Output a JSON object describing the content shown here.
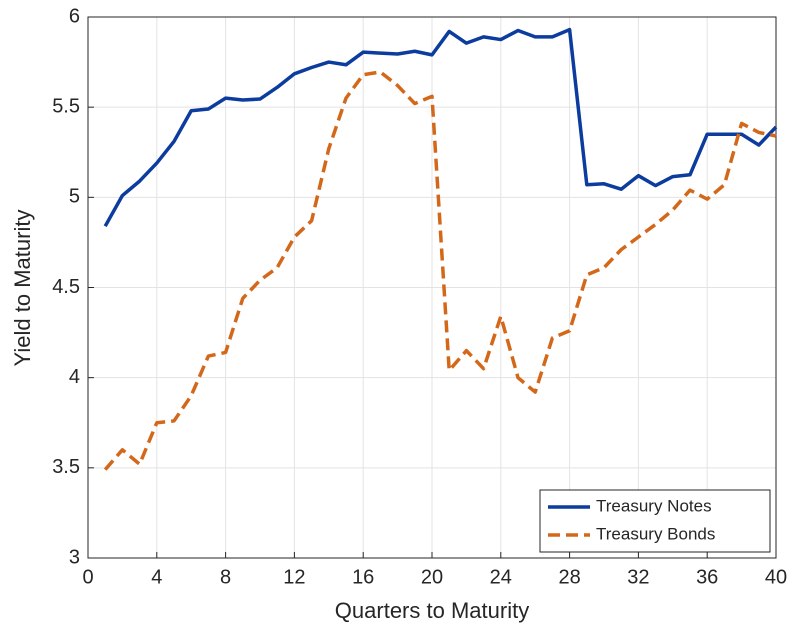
{
  "chart_data": {
    "type": "line",
    "x_label": "Quarters to Maturity",
    "y_label": "Yield to Maturity",
    "x": [
      1,
      2,
      3,
      4,
      5,
      6,
      7,
      8,
      9,
      10,
      11,
      12,
      13,
      14,
      15,
      16,
      17,
      18,
      19,
      20,
      21,
      22,
      23,
      24,
      25,
      26,
      27,
      28,
      29,
      30,
      31,
      32,
      33,
      34,
      35,
      36,
      37,
      38,
      39,
      40
    ],
    "series": [
      {
        "name": "Treasury Notes",
        "color": "#0b3c9e",
        "dash": "solid",
        "values": [
          4.84,
          5.01,
          5.09,
          5.19,
          5.31,
          5.48,
          5.49,
          5.55,
          5.54,
          5.545,
          5.61,
          5.685,
          5.72,
          5.75,
          5.735,
          5.805,
          5.8,
          5.795,
          5.81,
          5.79,
          5.92,
          5.855,
          5.89,
          5.875,
          5.925,
          5.89,
          5.89,
          5.93,
          5.07,
          5.075,
          5.045,
          5.12,
          5.065,
          5.115,
          5.125,
          5.35,
          5.35,
          5.35,
          5.29,
          5.39
        ]
      },
      {
        "name": "Treasury Bonds",
        "color": "#d4681a",
        "dash": "dashed",
        "values": [
          3.49,
          3.6,
          3.52,
          3.75,
          3.76,
          3.9,
          4.12,
          4.14,
          4.44,
          4.54,
          4.61,
          4.78,
          4.87,
          5.27,
          5.55,
          5.68,
          5.695,
          5.62,
          5.52,
          5.56,
          4.04,
          4.15,
          4.05,
          4.34,
          4.0,
          3.92,
          4.22,
          4.26,
          4.57,
          4.61,
          4.71,
          4.78,
          4.85,
          4.93,
          5.04,
          4.99,
          5.07,
          5.41,
          5.36,
          5.34
        ]
      }
    ],
    "xlim": [
      0,
      40
    ],
    "xticks": [
      0,
      4,
      8,
      12,
      16,
      20,
      24,
      28,
      32,
      36,
      40
    ],
    "ylim": [
      3,
      6
    ],
    "yticks": [
      3,
      3.5,
      4,
      4.5,
      5,
      5.5,
      6
    ],
    "grid": true,
    "legend": "lower right"
  }
}
